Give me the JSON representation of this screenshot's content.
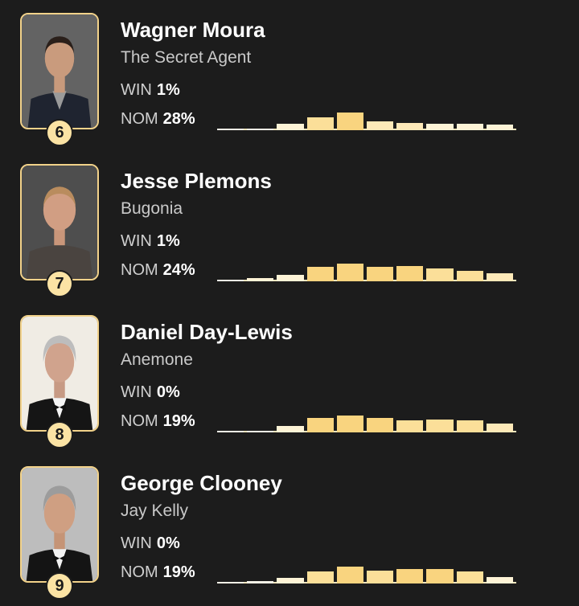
{
  "colors": {
    "background": "#1c1c1c",
    "accent_border": "#f2d28a",
    "rank_badge": "#fbe3a4",
    "bar_scale": [
      "#f3f0e6",
      "#fdf3d6",
      "#fde9b8",
      "#fbdf99",
      "#f9d47f"
    ]
  },
  "labels": {
    "win": "WIN",
    "nom": "NOM"
  },
  "nominees": [
    {
      "rank": "6",
      "name": "Wagner Moura",
      "film": "The Secret Agent",
      "win": "1%",
      "nom": "28%",
      "photo_icon": "actor-portrait-icon",
      "distribution": [
        0.05,
        0.05,
        0.35,
        0.75,
        1.0,
        0.5,
        0.42,
        0.38,
        0.35,
        0.3
      ]
    },
    {
      "rank": "7",
      "name": "Jesse Plemons",
      "film": "Bugonia",
      "win": "1%",
      "nom": "24%",
      "photo_icon": "actor-portrait-icon",
      "distribution": [
        0.1,
        0.2,
        0.35,
        0.8,
        1.0,
        0.8,
        0.85,
        0.75,
        0.6,
        0.45
      ]
    },
    {
      "rank": "8",
      "name": "Daniel Day-Lewis",
      "film": "Anemone",
      "win": "0%",
      "nom": "19%",
      "photo_icon": "actor-portrait-icon",
      "distribution": [
        0.05,
        0.1,
        0.35,
        0.8,
        0.95,
        0.8,
        0.7,
        0.75,
        0.7,
        0.5
      ]
    },
    {
      "rank": "9",
      "name": "George Clooney",
      "film": "Jay Kelly",
      "win": "0%",
      "nom": "19%",
      "photo_icon": "actor-portrait-icon",
      "distribution": [
        0.05,
        0.15,
        0.3,
        0.7,
        0.95,
        0.75,
        0.8,
        0.8,
        0.7,
        0.35
      ]
    }
  ]
}
